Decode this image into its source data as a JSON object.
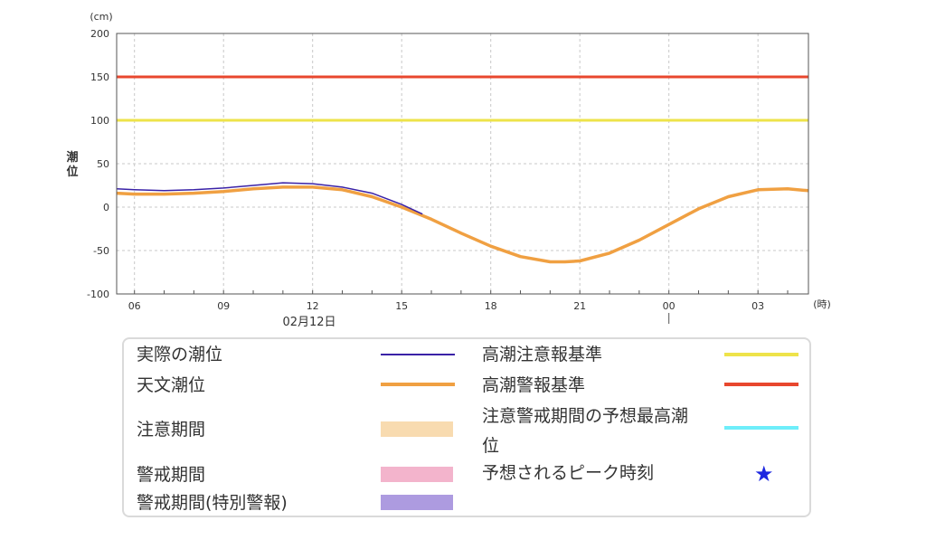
{
  "chart_data": {
    "type": "line",
    "ylabel": "潮位",
    "y_unit": "(cm)",
    "x_unit": "(時)",
    "ylim": [
      -100,
      200
    ],
    "yticks": [
      200,
      150,
      100,
      50,
      0,
      -50,
      -100
    ],
    "xticks": [
      {
        "label": "06",
        "hour": 6
      },
      {
        "label": "09",
        "hour": 9
      },
      {
        "label": "12",
        "hour": 12
      },
      {
        "label": "15",
        "hour": 15
      },
      {
        "label": "18",
        "hour": 18
      },
      {
        "label": "21",
        "hour": 21
      },
      {
        "label": "00",
        "hour": 24
      },
      {
        "label": "03",
        "hour": 27
      }
    ],
    "xlim_hours": [
      5.4,
      28.7
    ],
    "date_label": "02月12日",
    "date_marker_hour": 24,
    "grid": true,
    "thresholds": [
      {
        "name": "高潮警報基準",
        "value": 150,
        "color": "#e8472e"
      },
      {
        "name": "高潮注意報基準",
        "value": 100,
        "color": "#eee34a"
      }
    ],
    "series": [
      {
        "name": "天文潮位",
        "color": "#f0a042",
        "x": [
          5.4,
          6,
          7,
          8,
          9,
          10,
          11,
          12,
          13,
          14,
          15,
          16,
          17,
          18,
          19,
          20,
          20.5,
          21,
          22,
          23,
          24,
          25,
          26,
          27,
          28,
          28.7
        ],
        "y": [
          16,
          15,
          15,
          16,
          18,
          21,
          23,
          23,
          20,
          12,
          0,
          -14,
          -30,
          -45,
          -57,
          -63,
          -63,
          -62,
          -53,
          -38,
          -20,
          -2,
          12,
          20,
          21,
          19
        ]
      },
      {
        "name": "実際の潮位",
        "color": "#3a22a7",
        "x": [
          5.4,
          6,
          7,
          8,
          9,
          10,
          11,
          12,
          13,
          14,
          15,
          15.7
        ],
        "y": [
          21,
          20,
          19,
          20,
          22,
          25,
          28,
          27,
          23,
          16,
          3,
          -8
        ]
      }
    ]
  },
  "legend": {
    "actual": "実際の潮位",
    "astro": "天文潮位",
    "caution_period": "注意期間",
    "warning_period": "警戒期間",
    "special_period": "警戒期間(特別警報)",
    "caution_standard": "高潮注意報基準",
    "warning_standard": "高潮警報基準",
    "predicted_max_line1": "注意警戒期間の予想最高潮",
    "predicted_max_line2": "位",
    "peak_time": "予想されるピーク時刻",
    "star": "★",
    "colors": {
      "actual": "#3a22a7",
      "astro": "#f0a042",
      "caution_period": "#f8dbb0",
      "warning_period": "#f3b4cc",
      "special_period": "#ad9be0",
      "caution_standard": "#eee34a",
      "warning_standard": "#e8472e",
      "predicted_max": "#6eeefa",
      "peak": "#1d27e0"
    }
  }
}
